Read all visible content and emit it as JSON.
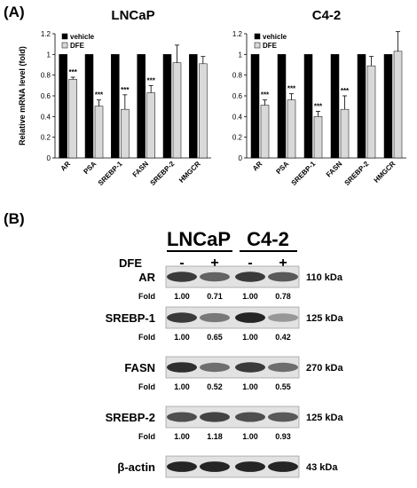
{
  "panels": {
    "a_label": "(A)",
    "b_label": "(B)"
  },
  "chart_data": [
    {
      "type": "bar",
      "title": "LNCaP",
      "ylabel": "Relative mRNA level (fold)",
      "xlabel": "",
      "ylim": [
        0,
        1.2
      ],
      "yticks": [
        "0",
        "0.2",
        "0.4",
        "0.6",
        "0.8",
        "1",
        "1.2"
      ],
      "categories": [
        "AR",
        "PSA",
        "SREBP-1",
        "FASN",
        "SREBP-2",
        "HMGCR"
      ],
      "legend_position": "top-left",
      "series": [
        {
          "name": "vehicle",
          "color": "#000000",
          "values": [
            1,
            1,
            1,
            1,
            1,
            1
          ],
          "errors": [
            0,
            0,
            0,
            0,
            0,
            0
          ]
        },
        {
          "name": "DFE",
          "color": "#d9d9d9",
          "values": [
            0.76,
            0.5,
            0.47,
            0.63,
            0.92,
            0.91
          ],
          "errors": [
            0.02,
            0.06,
            0.14,
            0.07,
            0.17,
            0.07
          ]
        }
      ],
      "annotations": [
        "***",
        "***",
        "***",
        "***",
        "",
        ""
      ]
    },
    {
      "type": "bar",
      "title": "C4-2",
      "ylabel": "",
      "xlabel": "",
      "ylim": [
        0,
        1.2
      ],
      "yticks": [
        "0",
        "0.2",
        "0.4",
        "0.6",
        "0.8",
        "1",
        "1.2"
      ],
      "categories": [
        "AR",
        "PSA",
        "SREBP-1",
        "FASN",
        "SREBP-2",
        "HMGCR"
      ],
      "legend_position": "top-center",
      "series": [
        {
          "name": "vehicle",
          "color": "#000000",
          "values": [
            1,
            1,
            1,
            1,
            1,
            1
          ],
          "errors": [
            0,
            0,
            0,
            0,
            0,
            0
          ]
        },
        {
          "name": "DFE",
          "color": "#d9d9d9",
          "values": [
            0.51,
            0.56,
            0.4,
            0.47,
            0.89,
            1.03
          ],
          "errors": [
            0.05,
            0.06,
            0.05,
            0.13,
            0.09,
            0.19
          ]
        }
      ],
      "annotations": [
        "***",
        "***",
        "***",
        "***",
        "",
        ""
      ]
    }
  ],
  "western_blot": {
    "cell_lines": [
      "LNCaP",
      "C4-2"
    ],
    "treatment_label": "DFE",
    "lane_signs": [
      "-",
      "+",
      "-",
      "+"
    ],
    "fold_label": "Fold",
    "rows": [
      {
        "protein": "AR",
        "kda": "110 kDa",
        "folds": [
          "1.00",
          "0.71",
          "1.00",
          "0.78"
        ],
        "intensity": [
          0.85,
          0.65,
          0.85,
          0.7
        ]
      },
      {
        "protein": "SREBP-1",
        "kda": "125 kDa",
        "folds": [
          "1.00",
          "0.65",
          "1.00",
          "0.42"
        ],
        "intensity": [
          0.85,
          0.55,
          0.95,
          0.4
        ]
      },
      {
        "protein": "FASN",
        "kda": "270 kDa",
        "folds": [
          "1.00",
          "0.52",
          "1.00",
          "0.55"
        ],
        "intensity": [
          0.9,
          0.6,
          0.85,
          0.6
        ]
      },
      {
        "protein": "SREBP-2",
        "kda": "125 kDa",
        "folds": [
          "1.00",
          "1.18",
          "1.00",
          "0.93"
        ],
        "intensity": [
          0.75,
          0.8,
          0.75,
          0.7
        ]
      },
      {
        "protein": "β-actin",
        "kda": "43 kDa",
        "folds": [],
        "intensity": [
          0.95,
          0.95,
          0.95,
          0.95
        ]
      }
    ]
  }
}
